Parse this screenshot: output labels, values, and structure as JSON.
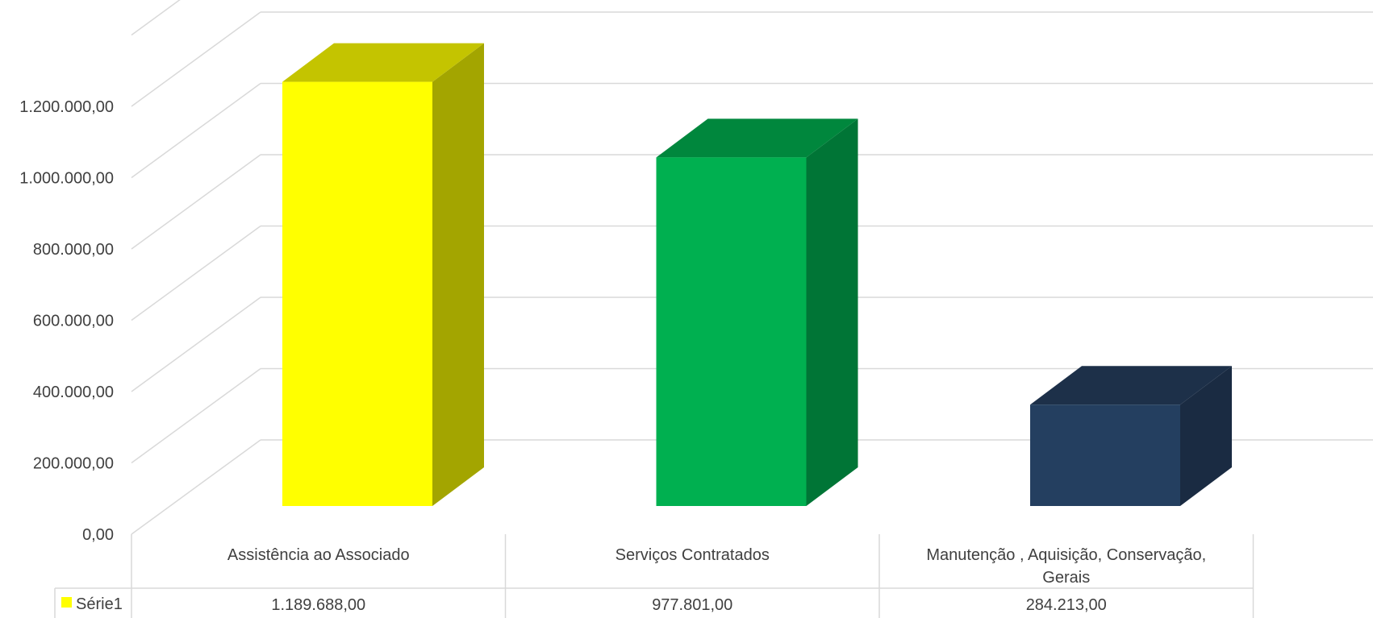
{
  "chart_data": {
    "type": "bar",
    "style": "3d-column",
    "title": "",
    "xlabel": "",
    "ylabel": "",
    "ylim": [
      0,
      1400000
    ],
    "yticks": [
      0,
      200000,
      400000,
      600000,
      800000,
      1000000,
      1200000
    ],
    "ytick_labels": [
      "0,00",
      "200.000,00",
      "400.000,00",
      "600.000,00",
      "800.000,00",
      "1.000.000,00",
      "1.200.000,00"
    ],
    "grid": true,
    "legend": "data-table",
    "categories": [
      [
        "Assistência ao Associado"
      ],
      [
        "Serviços Contratados"
      ],
      [
        "Manutenção , Aquisição, Conservação,",
        "Gerais"
      ]
    ],
    "series": [
      {
        "name": "Série1",
        "legend_color": "#FFFF00",
        "values": [
          1189688,
          977801,
          284213
        ],
        "value_labels": [
          "1.189.688,00",
          "977.801,00",
          "284.213,00"
        ],
        "bar_colors": [
          {
            "front": "#FFFF00",
            "top": "#C4C400",
            "side": "#A3A500"
          },
          {
            "front": "#00B050",
            "top": "#00873D",
            "side": "#007536"
          },
          {
            "front": "#243F60",
            "top": "#1D3049",
            "side": "#1A2B42"
          }
        ]
      }
    ]
  }
}
